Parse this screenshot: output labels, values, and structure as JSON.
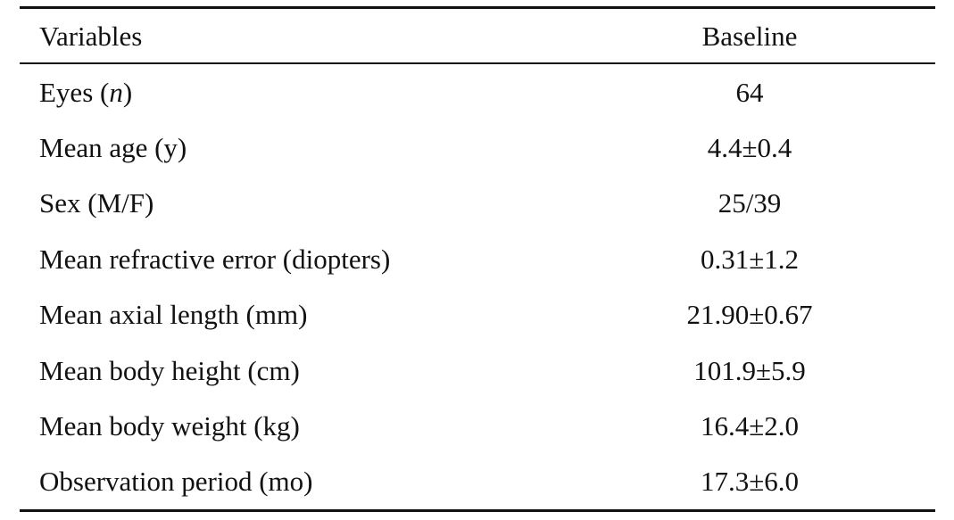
{
  "table": {
    "headers": {
      "variables": "Variables",
      "baseline": "Baseline"
    },
    "rows": [
      {
        "label_prefix": "Eyes (",
        "label_italic": "n",
        "label_suffix": ")",
        "value": "64"
      },
      {
        "label": "Mean age (y)",
        "value": "4.4±0.4"
      },
      {
        "label": "Sex (M/F)",
        "value": "25/39"
      },
      {
        "label": "Mean refractive error (diopters)",
        "value": "0.31±1.2"
      },
      {
        "label": "Mean axial length (mm)",
        "value": "21.90±0.67"
      },
      {
        "label": "Mean body height (cm)",
        "value": "101.9±5.9"
      },
      {
        "label": "Mean body weight (kg)",
        "value": "16.4±2.0"
      },
      {
        "label": "Observation period (mo)",
        "value": "17.3±6.0"
      }
    ]
  }
}
